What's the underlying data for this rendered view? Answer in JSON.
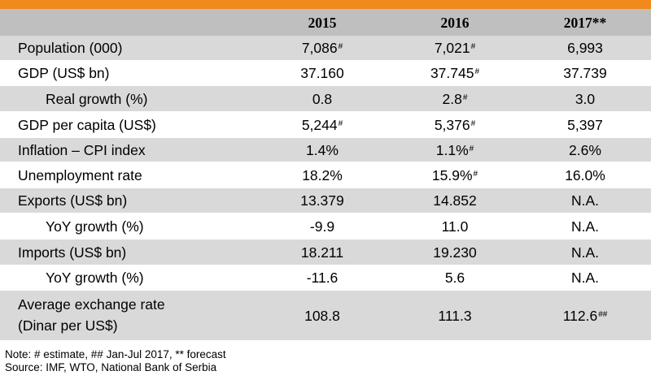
{
  "table": {
    "columns": [
      "",
      "2015",
      "2016",
      "2017**"
    ],
    "rows": [
      {
        "label": "Population (000)",
        "indent": false,
        "shaded": true,
        "cells": [
          {
            "v": "7,086",
            "m": "#"
          },
          {
            "v": "7,021",
            "m": "#"
          },
          {
            "v": "6,993",
            "m": ""
          }
        ]
      },
      {
        "label": "GDP (US$ bn)",
        "indent": false,
        "shaded": false,
        "cells": [
          {
            "v": "37.160",
            "m": ""
          },
          {
            "v": "37.745",
            "m": "#"
          },
          {
            "v": "37.739",
            "m": ""
          }
        ]
      },
      {
        "label": "Real growth (%)",
        "indent": true,
        "shaded": true,
        "cells": [
          {
            "v": "0.8",
            "m": ""
          },
          {
            "v": "2.8",
            "m": "#"
          },
          {
            "v": "3.0",
            "m": ""
          }
        ]
      },
      {
        "label": "GDP per capita (US$)",
        "indent": false,
        "shaded": false,
        "cells": [
          {
            "v": "5,244",
            "m": "#"
          },
          {
            "v": "5,376",
            "m": "#"
          },
          {
            "v": "5,397",
            "m": ""
          }
        ]
      },
      {
        "label": "Inflation – CPI index",
        "indent": false,
        "shaded": true,
        "cells": [
          {
            "v": "1.4%",
            "m": ""
          },
          {
            "v": "1.1%",
            "m": "#"
          },
          {
            "v": "2.6%",
            "m": ""
          }
        ]
      },
      {
        "label": "Unemployment rate",
        "indent": false,
        "shaded": false,
        "cells": [
          {
            "v": "18.2%",
            "m": ""
          },
          {
            "v": "15.9%",
            "m": "#"
          },
          {
            "v": "16.0%",
            "m": ""
          }
        ]
      },
      {
        "label": "Exports (US$ bn)",
        "indent": false,
        "shaded": true,
        "cells": [
          {
            "v": "13.379",
            "m": ""
          },
          {
            "v": "14.852",
            "m": ""
          },
          {
            "v": "N.A.",
            "m": ""
          }
        ]
      },
      {
        "label": "YoY growth (%)",
        "indent": true,
        "shaded": false,
        "cells": [
          {
            "v": "-9.9",
            "m": ""
          },
          {
            "v": "11.0",
            "m": ""
          },
          {
            "v": "N.A.",
            "m": ""
          }
        ]
      },
      {
        "label": "Imports (US$ bn)",
        "indent": false,
        "shaded": true,
        "cells": [
          {
            "v": "18.211",
            "m": ""
          },
          {
            "v": "19.230",
            "m": ""
          },
          {
            "v": "N.A.",
            "m": ""
          }
        ]
      },
      {
        "label": "YoY growth (%)",
        "indent": true,
        "shaded": false,
        "cells": [
          {
            "v": "-11.6",
            "m": ""
          },
          {
            "v": "5.6",
            "m": ""
          },
          {
            "v": "N.A.",
            "m": ""
          }
        ]
      },
      {
        "label": "Average exchange rate",
        "label2": "(Dinar per US$)",
        "indent": false,
        "shaded": true,
        "cells": [
          {
            "v": "108.8",
            "m": ""
          },
          {
            "v": "111.3",
            "m": ""
          },
          {
            "v": "112.6",
            "m": "##"
          }
        ]
      }
    ]
  },
  "notes": {
    "line1": "Note: # estimate, ## Jan-Jul 2017, ** forecast",
    "line2": "Source: IMF, WTO, National Bank of Serbia"
  },
  "colors": {
    "accent_bar": "#f08a1c",
    "header_bg": "#bfbfbf",
    "row_shade": "#d9d9d9"
  }
}
